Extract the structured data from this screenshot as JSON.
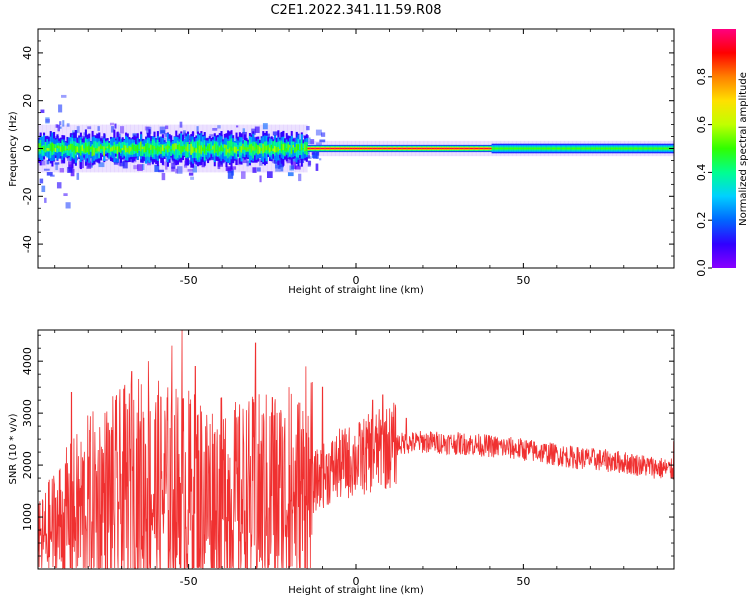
{
  "title": "C2E1.2022.341.11.59.R08",
  "chart_data": [
    {
      "type": "heatmap",
      "xlabel": "Height of straight line (km)",
      "ylabel": "Frequency (Hz)",
      "xlim": [
        -95,
        95
      ],
      "ylim": [
        -50,
        50
      ],
      "xticks": [
        -50,
        0,
        50
      ],
      "yticks": [
        -40,
        -20,
        0,
        20,
        40
      ],
      "colorbar": {
        "label": "Normalized spectral amplitude",
        "range": [
          0,
          1
        ],
        "ticks": [
          0.0,
          0.2,
          0.4,
          0.6,
          0.8
        ],
        "tick_labels": [
          "0.0",
          "0.2",
          "0.4",
          "0.6",
          "0.8"
        ],
        "colormap_stops": [
          "#8a00ff",
          "#3000ff",
          "#0066ff",
          "#00d0ff",
          "#00ff90",
          "#30ff00",
          "#c0ff00",
          "#ffe000",
          "#ff8000",
          "#ff0000",
          "#ff0080"
        ]
      },
      "description_of_signal": {
        "band_center_hz": 0,
        "regions": [
          {
            "x_range": [
              -95,
              -15
            ],
            "spread_hz": 5,
            "peak_amplitude": 0.6,
            "pattern": "noisy"
          },
          {
            "x_range": [
              -15,
              40
            ],
            "spread_hz": 1.5,
            "peak_amplitude": 0.95,
            "pattern": "narrow"
          },
          {
            "x_range": [
              40,
              95
            ],
            "spread_hz": 2,
            "peak_amplitude": 0.55,
            "pattern": "steady"
          }
        ]
      }
    },
    {
      "type": "line",
      "xlabel": "Height of straight line (km)",
      "ylabel": "SNR (10 * v/v)",
      "xlim": [
        -95,
        95
      ],
      "ylim": [
        0,
        4600
      ],
      "xticks": [
        -50,
        0,
        50
      ],
      "yticks": [
        1000,
        2000,
        3000,
        4000
      ],
      "color": "#f03030",
      "envelope": [
        {
          "x": -95,
          "y": 500
        },
        {
          "x": -90,
          "y": 800
        },
        {
          "x": -80,
          "y": 1200
        },
        {
          "x": -65,
          "y": 1500
        },
        {
          "x": -50,
          "y": 1400
        },
        {
          "x": -35,
          "y": 1300
        },
        {
          "x": -25,
          "y": 1400
        },
        {
          "x": -14,
          "y": 1400
        },
        {
          "x": -12,
          "y": 1700
        },
        {
          "x": -5,
          "y": 2000
        },
        {
          "x": 0,
          "y": 2100
        },
        {
          "x": 5,
          "y": 2250
        },
        {
          "x": 12,
          "y": 2400
        },
        {
          "x": 20,
          "y": 2450
        },
        {
          "x": 35,
          "y": 2400
        },
        {
          "x": 50,
          "y": 2300
        },
        {
          "x": 65,
          "y": 2150
        },
        {
          "x": 80,
          "y": 2050
        },
        {
          "x": 95,
          "y": 1900
        }
      ],
      "peaks": [
        {
          "x": -85,
          "y": 3400
        },
        {
          "x": -67,
          "y": 3800
        },
        {
          "x": -62,
          "y": 4000
        },
        {
          "x": -55,
          "y": 4300
        },
        {
          "x": -52,
          "y": 4600
        },
        {
          "x": -48,
          "y": 3900
        },
        {
          "x": -39,
          "y": 2900
        },
        {
          "x": -30,
          "y": 4350
        },
        {
          "x": -25,
          "y": 3300
        },
        {
          "x": -20,
          "y": 3500
        },
        {
          "x": -15,
          "y": 3900
        },
        {
          "x": -10,
          "y": 3500
        },
        {
          "x": 5,
          "y": 3250
        },
        {
          "x": 8,
          "y": 3350
        },
        {
          "x": 15,
          "y": 2900
        },
        {
          "x": 95,
          "y": 2450
        }
      ]
    }
  ]
}
